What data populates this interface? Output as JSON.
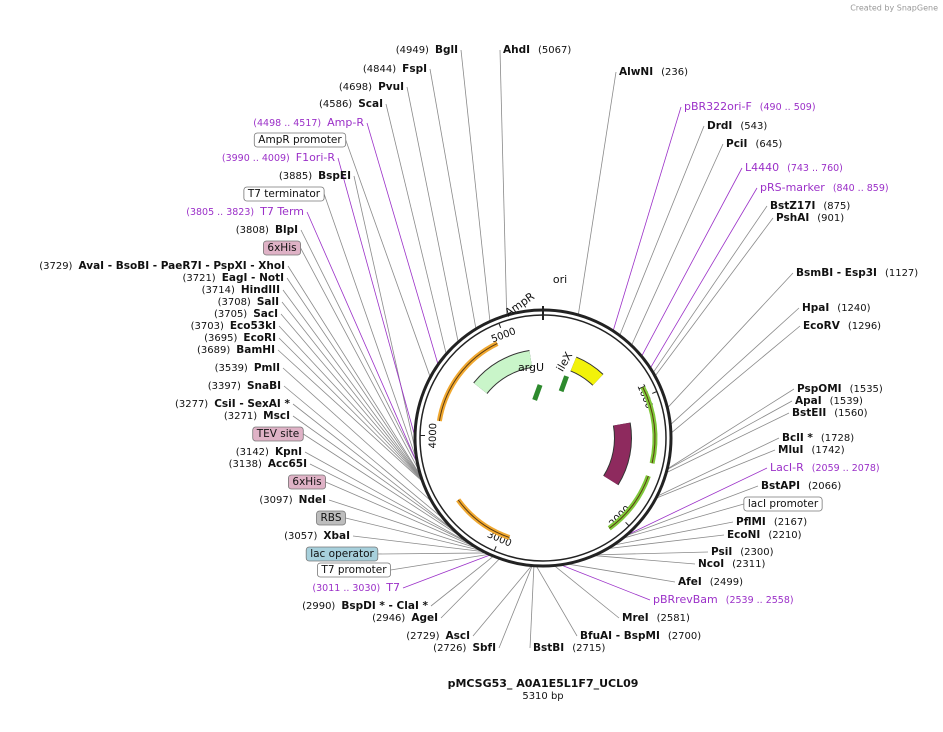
{
  "credit": "Created by SnapGene",
  "title": "pMCSG53_ A0A1E5L1F7_UCL09",
  "subtitle": "5310 bp",
  "total_bp": 5310,
  "ticks": [
    1000,
    2000,
    3000,
    4000,
    5000
  ],
  "map_features": [
    {
      "name": "ori",
      "color": "#f2f20a"
    },
    {
      "name": "AmpR",
      "color": "#c9f5c9"
    },
    {
      "name": "lacI",
      "color": "#8e2a5e"
    },
    {
      "name": "argU",
      "color": "#2d8a2d"
    },
    {
      "name": "ileX",
      "color": "#2d8a2d"
    }
  ],
  "sites": [
    {
      "name": "BglI",
      "pos": "(4949)"
    },
    {
      "name": "FspI",
      "pos": "(4844)"
    },
    {
      "name": "PvuI",
      "pos": "(4698)"
    },
    {
      "name": "ScaI",
      "pos": "(4586)"
    },
    {
      "name": "BspEI",
      "pos": "(3885)"
    },
    {
      "name": "BlpI",
      "pos": "(3808)"
    },
    {
      "name": "AvaI  - BsoBI  - PaeR7I  - PspXI  - XhoI",
      "pos": "(3729)"
    },
    {
      "name": "EagI  - NotI",
      "pos": "(3721)"
    },
    {
      "name": "HindIII",
      "pos": "(3714)"
    },
    {
      "name": "SalI",
      "pos": "(3708)"
    },
    {
      "name": "SacI",
      "pos": "(3705)"
    },
    {
      "name": "Eco53kI",
      "pos": "(3703)"
    },
    {
      "name": "EcoRI",
      "pos": "(3695)"
    },
    {
      "name": "BamHI",
      "pos": "(3689)"
    },
    {
      "name": "PmlI",
      "pos": "(3539)"
    },
    {
      "name": "SnaBI",
      "pos": "(3397)"
    },
    {
      "name": "CsiI  - SexAI *",
      "pos": "(3277)"
    },
    {
      "name": "MscI",
      "pos": "(3271)"
    },
    {
      "name": "KpnI",
      "pos": "(3142)"
    },
    {
      "name": "Acc65I",
      "pos": "(3138)"
    },
    {
      "name": "NdeI",
      "pos": "(3097)"
    },
    {
      "name": "XbaI",
      "pos": "(3057)"
    },
    {
      "name": "BspDI *  - ClaI *",
      "pos": "(2990)"
    },
    {
      "name": "AgeI",
      "pos": "(2946)"
    },
    {
      "name": "AscI",
      "pos": "(2729)"
    },
    {
      "name": "SbfI",
      "pos": "(2726)"
    },
    {
      "name": "AhdI",
      "pos": "(5067)"
    },
    {
      "name": "AlwNI",
      "pos": "(236)"
    },
    {
      "name": "DrdI",
      "pos": "(543)"
    },
    {
      "name": "PciI",
      "pos": "(645)"
    },
    {
      "name": "BstZ17I",
      "pos": "(875)"
    },
    {
      "name": "PshAI",
      "pos": "(901)"
    },
    {
      "name": "BsmBI  - Esp3I",
      "pos": "(1127)"
    },
    {
      "name": "HpaI",
      "pos": "(1240)"
    },
    {
      "name": "EcoRV",
      "pos": "(1296)"
    },
    {
      "name": "PspOMI",
      "pos": "(1535)"
    },
    {
      "name": "ApaI",
      "pos": "(1539)"
    },
    {
      "name": "BstEII",
      "pos": "(1560)"
    },
    {
      "name": "BclI *",
      "pos": "(1728)"
    },
    {
      "name": "MluI",
      "pos": "(1742)"
    },
    {
      "name": "BstAPI",
      "pos": "(2066)"
    },
    {
      "name": "PflMI",
      "pos": "(2167)"
    },
    {
      "name": "EcoNI",
      "pos": "(2210)"
    },
    {
      "name": "PsiI",
      "pos": "(2300)"
    },
    {
      "name": "NcoI",
      "pos": "(2311)"
    },
    {
      "name": "AfeI",
      "pos": "(2499)"
    },
    {
      "name": "MreI",
      "pos": "(2581)"
    },
    {
      "name": "BfuAI  - BspMI",
      "pos": "(2700)"
    },
    {
      "name": "BstBI",
      "pos": "(2715)"
    }
  ],
  "primers": [
    {
      "name": "Amp-R",
      "pos": "(4498 .. 4517)"
    },
    {
      "name": "F1ori-R",
      "pos": "(3990 .. 4009)"
    },
    {
      "name": "T7 Term",
      "pos": "(3805 .. 3823)"
    },
    {
      "name": "T7",
      "pos": "(3011 .. 3030)"
    },
    {
      "name": "pBR322ori-F",
      "pos": "(490 .. 509)"
    },
    {
      "name": "L4440",
      "pos": "(743 .. 760)"
    },
    {
      "name": "pRS-marker",
      "pos": "(840 .. 859)"
    },
    {
      "name": "LacI-R",
      "pos": "(2059 .. 2078)"
    },
    {
      "name": "pBRrevBam",
      "pos": "(2539 .. 2558)"
    }
  ],
  "features": [
    {
      "name": "AmpR promoter",
      "color": "#ffffff"
    },
    {
      "name": "T7 terminator",
      "color": "#ffffff"
    },
    {
      "name": "6xHis",
      "color": "#dfb2c6"
    },
    {
      "name": "TEV site",
      "color": "#dfb2c6"
    },
    {
      "name": "6xHis",
      "color": "#dfb2c6"
    },
    {
      "name": "RBS",
      "color": "#bdbdbd"
    },
    {
      "name": "lac operator",
      "color": "#a7d0dc"
    },
    {
      "name": "T7 promoter",
      "color": "#ffffff"
    },
    {
      "name": "lacI promoter",
      "color": "#ffffff"
    }
  ]
}
